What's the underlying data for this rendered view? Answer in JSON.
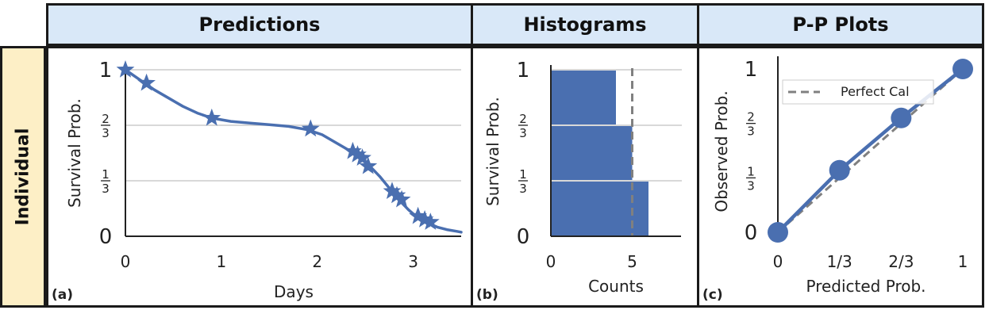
{
  "headers": [
    "Predictions",
    "Histograms",
    "P-P Plots"
  ],
  "row_label": "Individual",
  "chart_data": [
    {
      "type": "line",
      "panel_tag": "(a)",
      "title": "Predictions",
      "xlabel": "Days",
      "ylabel": "Survival Prob.",
      "xlim": [
        0,
        3.5
      ],
      "ylim": [
        0,
        1
      ],
      "xticks": [
        0,
        1,
        2,
        3
      ],
      "xtick_labels": [
        "0",
        "1",
        "2",
        "3"
      ],
      "yticks": [
        0,
        0.3333,
        0.6667,
        1
      ],
      "ytick_labels": [
        {
          "type": "int",
          "text": "0"
        },
        {
          "type": "frac",
          "num": "1",
          "den": "3"
        },
        {
          "type": "frac",
          "num": "2",
          "den": "3"
        },
        {
          "type": "int",
          "text": "1"
        }
      ],
      "grid": true,
      "curve": {
        "x": [
          0,
          0.1,
          0.2,
          0.3,
          0.45,
          0.6,
          0.75,
          0.9,
          1.1,
          1.3,
          1.5,
          1.7,
          1.9,
          2.05,
          2.2,
          2.35,
          2.45,
          2.55,
          2.65,
          2.75,
          2.85,
          2.95,
          3.05,
          3.15,
          3.25,
          3.35,
          3.45,
          3.5
        ],
        "y": [
          1.0,
          0.96,
          0.92,
          0.88,
          0.83,
          0.78,
          0.74,
          0.71,
          0.69,
          0.68,
          0.67,
          0.66,
          0.64,
          0.61,
          0.56,
          0.51,
          0.47,
          0.42,
          0.36,
          0.29,
          0.22,
          0.16,
          0.11,
          0.08,
          0.055,
          0.04,
          0.03,
          0.025
        ]
      },
      "markers": {
        "x": [
          0.0,
          0.22,
          0.9,
          1.93,
          2.37,
          2.42,
          2.47,
          2.53,
          2.78,
          2.83,
          2.88,
          3.05,
          3.12,
          3.18
        ],
        "y": [
          1.0,
          0.92,
          0.71,
          0.645,
          0.51,
          0.49,
          0.47,
          0.42,
          0.27,
          0.245,
          0.22,
          0.12,
          0.1,
          0.085
        ]
      },
      "color": "#4a6fb0"
    },
    {
      "type": "bar",
      "orientation": "horizontal",
      "panel_tag": "(b)",
      "title": "Histograms",
      "xlabel": "Counts",
      "ylabel": "Survival Prob.",
      "xlim": [
        0,
        8
      ],
      "ylim": [
        0,
        1
      ],
      "xticks": [
        0,
        5
      ],
      "xtick_labels": [
        "0",
        "5"
      ],
      "ytick_labels": [
        {
          "type": "int",
          "text": "0"
        },
        {
          "type": "frac",
          "num": "1",
          "den": "3"
        },
        {
          "type": "frac",
          "num": "2",
          "den": "3"
        },
        {
          "type": "int",
          "text": "1"
        }
      ],
      "bins": [
        "[0, 1/3)",
        "[1/3, 2/3)",
        "[2/3, 1]"
      ],
      "values": [
        6,
        5,
        4
      ],
      "reference_line": 5,
      "color": "#4a6fb0"
    },
    {
      "type": "line",
      "panel_tag": "(c)",
      "title": "P-P Plots",
      "xlabel": "Predicted Prob.",
      "ylabel": "Observed Prob.",
      "xlim": [
        0,
        1
      ],
      "ylim": [
        0,
        1
      ],
      "xtick_labels": [
        "0",
        "1/3",
        "2/3",
        "1"
      ],
      "ytick_labels": [
        {
          "type": "int",
          "text": "0"
        },
        {
          "type": "frac",
          "num": "1",
          "den": "3"
        },
        {
          "type": "frac",
          "num": "2",
          "den": "3"
        },
        {
          "type": "int",
          "text": "1"
        }
      ],
      "series": [
        {
          "name": "Observed",
          "x": [
            0,
            0.3333,
            0.6667,
            1.0
          ],
          "y": [
            0,
            0.38,
            0.7,
            1.0
          ],
          "color": "#4a6fb0"
        },
        {
          "name": "Perfect Cal",
          "x": [
            0,
            1
          ],
          "y": [
            0,
            1
          ],
          "color": "#808080",
          "style": "dashed"
        }
      ],
      "legend": {
        "label": "Perfect Cal",
        "location": "top-left"
      }
    }
  ]
}
